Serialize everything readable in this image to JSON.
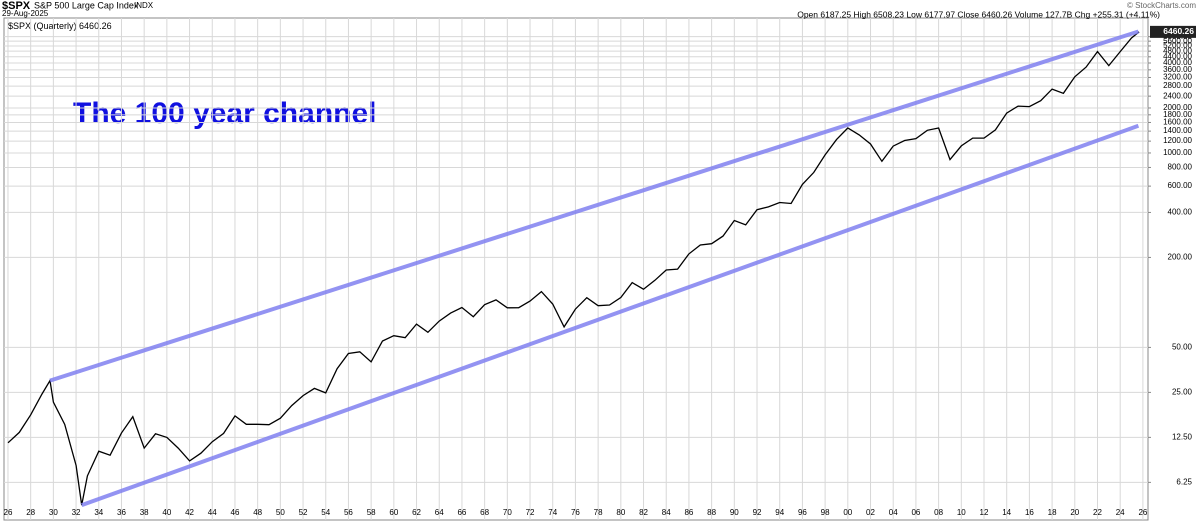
{
  "chart_data": {
    "type": "line",
    "symbol": "$SPX",
    "name": "S&P 500 Large Cap Index",
    "exchange": "INDX",
    "date": "29-Aug-2025",
    "quote": "Open 6187.25 High 6508.23 Low 6177.97 Close 6460.26 Volume 127.7B Chg +255.31 (+4.11%)",
    "credit": "© StockCharts.com",
    "legend": "$SPX (Quarterly)",
    "last_value": 6460.26,
    "annotation": "The 100 year channel",
    "log_scale": true,
    "grid": true,
    "xlim": [
      1925.65,
      2026.45
    ],
    "ylim": [
      3.5,
      8000
    ],
    "xticks": [
      {
        "value": 1926,
        "label": "26"
      },
      {
        "value": 1928,
        "label": "28"
      },
      {
        "value": 1930,
        "label": "30"
      },
      {
        "value": 1932,
        "label": "32"
      },
      {
        "value": 1934,
        "label": "34"
      },
      {
        "value": 1936,
        "label": "36"
      },
      {
        "value": 1938,
        "label": "38"
      },
      {
        "value": 1940,
        "label": "40"
      },
      {
        "value": 1942,
        "label": "42"
      },
      {
        "value": 1944,
        "label": "44"
      },
      {
        "value": 1946,
        "label": "46"
      },
      {
        "value": 1948,
        "label": "48"
      },
      {
        "value": 1950,
        "label": "50"
      },
      {
        "value": 1952,
        "label": "52"
      },
      {
        "value": 1954,
        "label": "54"
      },
      {
        "value": 1956,
        "label": "56"
      },
      {
        "value": 1958,
        "label": "58"
      },
      {
        "value": 1960,
        "label": "60"
      },
      {
        "value": 1962,
        "label": "62"
      },
      {
        "value": 1964,
        "label": "64"
      },
      {
        "value": 1966,
        "label": "66"
      },
      {
        "value": 1968,
        "label": "68"
      },
      {
        "value": 1970,
        "label": "70"
      },
      {
        "value": 1972,
        "label": "72"
      },
      {
        "value": 1974,
        "label": "74"
      },
      {
        "value": 1976,
        "label": "76"
      },
      {
        "value": 1978,
        "label": "78"
      },
      {
        "value": 1980,
        "label": "80"
      },
      {
        "value": 1982,
        "label": "82"
      },
      {
        "value": 1984,
        "label": "84"
      },
      {
        "value": 1986,
        "label": "86"
      },
      {
        "value": 1988,
        "label": "88"
      },
      {
        "value": 1990,
        "label": "90"
      },
      {
        "value": 1992,
        "label": "92"
      },
      {
        "value": 1994,
        "label": "94"
      },
      {
        "value": 1996,
        "label": "96"
      },
      {
        "value": 1998,
        "label": "98"
      },
      {
        "value": 2000,
        "label": "00"
      },
      {
        "value": 2002,
        "label": "02"
      },
      {
        "value": 2004,
        "label": "04"
      },
      {
        "value": 2006,
        "label": "06"
      },
      {
        "value": 2008,
        "label": "08"
      },
      {
        "value": 2010,
        "label": "10"
      },
      {
        "value": 2012,
        "label": "12"
      },
      {
        "value": 2014,
        "label": "14"
      },
      {
        "value": 2016,
        "label": "16"
      },
      {
        "value": 2018,
        "label": "18"
      },
      {
        "value": 2020,
        "label": "20"
      },
      {
        "value": 2022,
        "label": "22"
      },
      {
        "value": 2024,
        "label": "24"
      },
      {
        "value": 2026,
        "label": "26"
      }
    ],
    "yticks": [
      {
        "value": 6.25,
        "label": "6.25"
      },
      {
        "value": 12.5,
        "label": "12.50"
      },
      {
        "value": 25,
        "label": "25.00"
      },
      {
        "value": 50,
        "label": "50.00"
      },
      {
        "value": 200,
        "label": "200.00"
      },
      {
        "value": 400,
        "label": "400.00"
      },
      {
        "value": 600,
        "label": "600.00"
      },
      {
        "value": 800,
        "label": "800.00"
      },
      {
        "value": 1000,
        "label": "1000.00"
      },
      {
        "value": 1200,
        "label": "1200.00"
      },
      {
        "value": 1400,
        "label": "1400.00"
      },
      {
        "value": 1600,
        "label": "1600.00"
      },
      {
        "value": 1800,
        "label": "1800.00"
      },
      {
        "value": 2000,
        "label": "2000.00"
      },
      {
        "value": 2400,
        "label": "2400.00"
      },
      {
        "value": 2800,
        "label": "2800.00"
      },
      {
        "value": 3200,
        "label": "3200.00"
      },
      {
        "value": 3600,
        "label": "3600.00"
      },
      {
        "value": 4000,
        "label": "4000.00"
      },
      {
        "value": 4400,
        "label": "4400.00"
      },
      {
        "value": 4800,
        "label": "4800.00"
      },
      {
        "value": 5200,
        "label": "5200.00"
      },
      {
        "value": 5600,
        "label": "5600.00"
      },
      {
        "value": 6000,
        "label": "6000.00"
      }
    ],
    "x": [
      1926,
      1927,
      1928,
      1929,
      1929.7,
      1930,
      1931,
      1932,
      1932.5,
      1933,
      1934,
      1935,
      1936,
      1937,
      1938,
      1939,
      1940,
      1941,
      1942,
      1943,
      1944,
      1945,
      1946,
      1947,
      1948,
      1949,
      1950,
      1951,
      1952,
      1953,
      1954,
      1955,
      1956,
      1957,
      1958,
      1959,
      1960,
      1961,
      1962,
      1963,
      1964,
      1965,
      1966,
      1967,
      1968,
      1969,
      1970,
      1971,
      1972,
      1973,
      1974,
      1975,
      1976,
      1977,
      1978,
      1979,
      1980,
      1981,
      1982,
      1983,
      1984,
      1985,
      1986,
      1987,
      1988,
      1989,
      1990,
      1991,
      1992,
      1993,
      1994,
      1995,
      1996,
      1997,
      1998,
      1999,
      2000,
      2001,
      2002,
      2003,
      2004,
      2005,
      2006,
      2007,
      2008,
      2009,
      2010,
      2011,
      2012,
      2013,
      2014,
      2015,
      2016,
      2017,
      2018,
      2019,
      2020,
      2021,
      2022,
      2023,
      2024,
      2025,
      2025.67
    ],
    "series": [
      {
        "color": "#000000",
        "values": [
          11.5,
          13.5,
          17.7,
          24.4,
          30,
          21.5,
          15.3,
          8.1,
          4.4,
          6.9,
          10.1,
          9.5,
          13.4,
          17.2,
          10.6,
          13.2,
          12.5,
          10.6,
          8.7,
          9.8,
          11.7,
          13.3,
          17.4,
          15.3,
          15.3,
          15.2,
          16.8,
          20.4,
          23.8,
          26.6,
          24.8,
          36,
          45.5,
          46.7,
          40,
          55.2,
          59.9,
          58.1,
          71.6,
          63.1,
          75,
          84.8,
          92.4,
          80.3,
          96.5,
          103.9,
          92.1,
          92.2,
          102.1,
          118.1,
          97.6,
          68.6,
          90.2,
          107.5,
          95.1,
          96.1,
          107.9,
          135.8,
          122.6,
          140.6,
          164.9,
          167.2,
          211.3,
          242.2,
          247.1,
          277.7,
          353.4,
          330.2,
          417.1,
          435.7,
          466.5,
          459.3,
          615.9,
          740.7,
          970.4,
          1229.2,
          1469.3,
          1320.3,
          1148.1,
          879.8,
          1111.9,
          1211.9,
          1248.3,
          1418.3,
          1468.4,
          903.3,
          1115.1,
          1257.6,
          1257.6,
          1426.2,
          1848.4,
          2058.9,
          2043.9,
          2238.8,
          2673.6,
          2506.9,
          3230.8,
          3756.1,
          4766.2,
          3839.5,
          4769.8,
          5881.6,
          6460.26
        ]
      }
    ],
    "trendlines": [
      {
        "color": "#8080f0",
        "x": [
          1929.7,
          2025.6
        ],
        "values": [
          30,
          6500
        ]
      },
      {
        "color": "#8080f0",
        "x": [
          1932.5,
          2025.6
        ],
        "values": [
          4.4,
          1520
        ]
      }
    ]
  }
}
